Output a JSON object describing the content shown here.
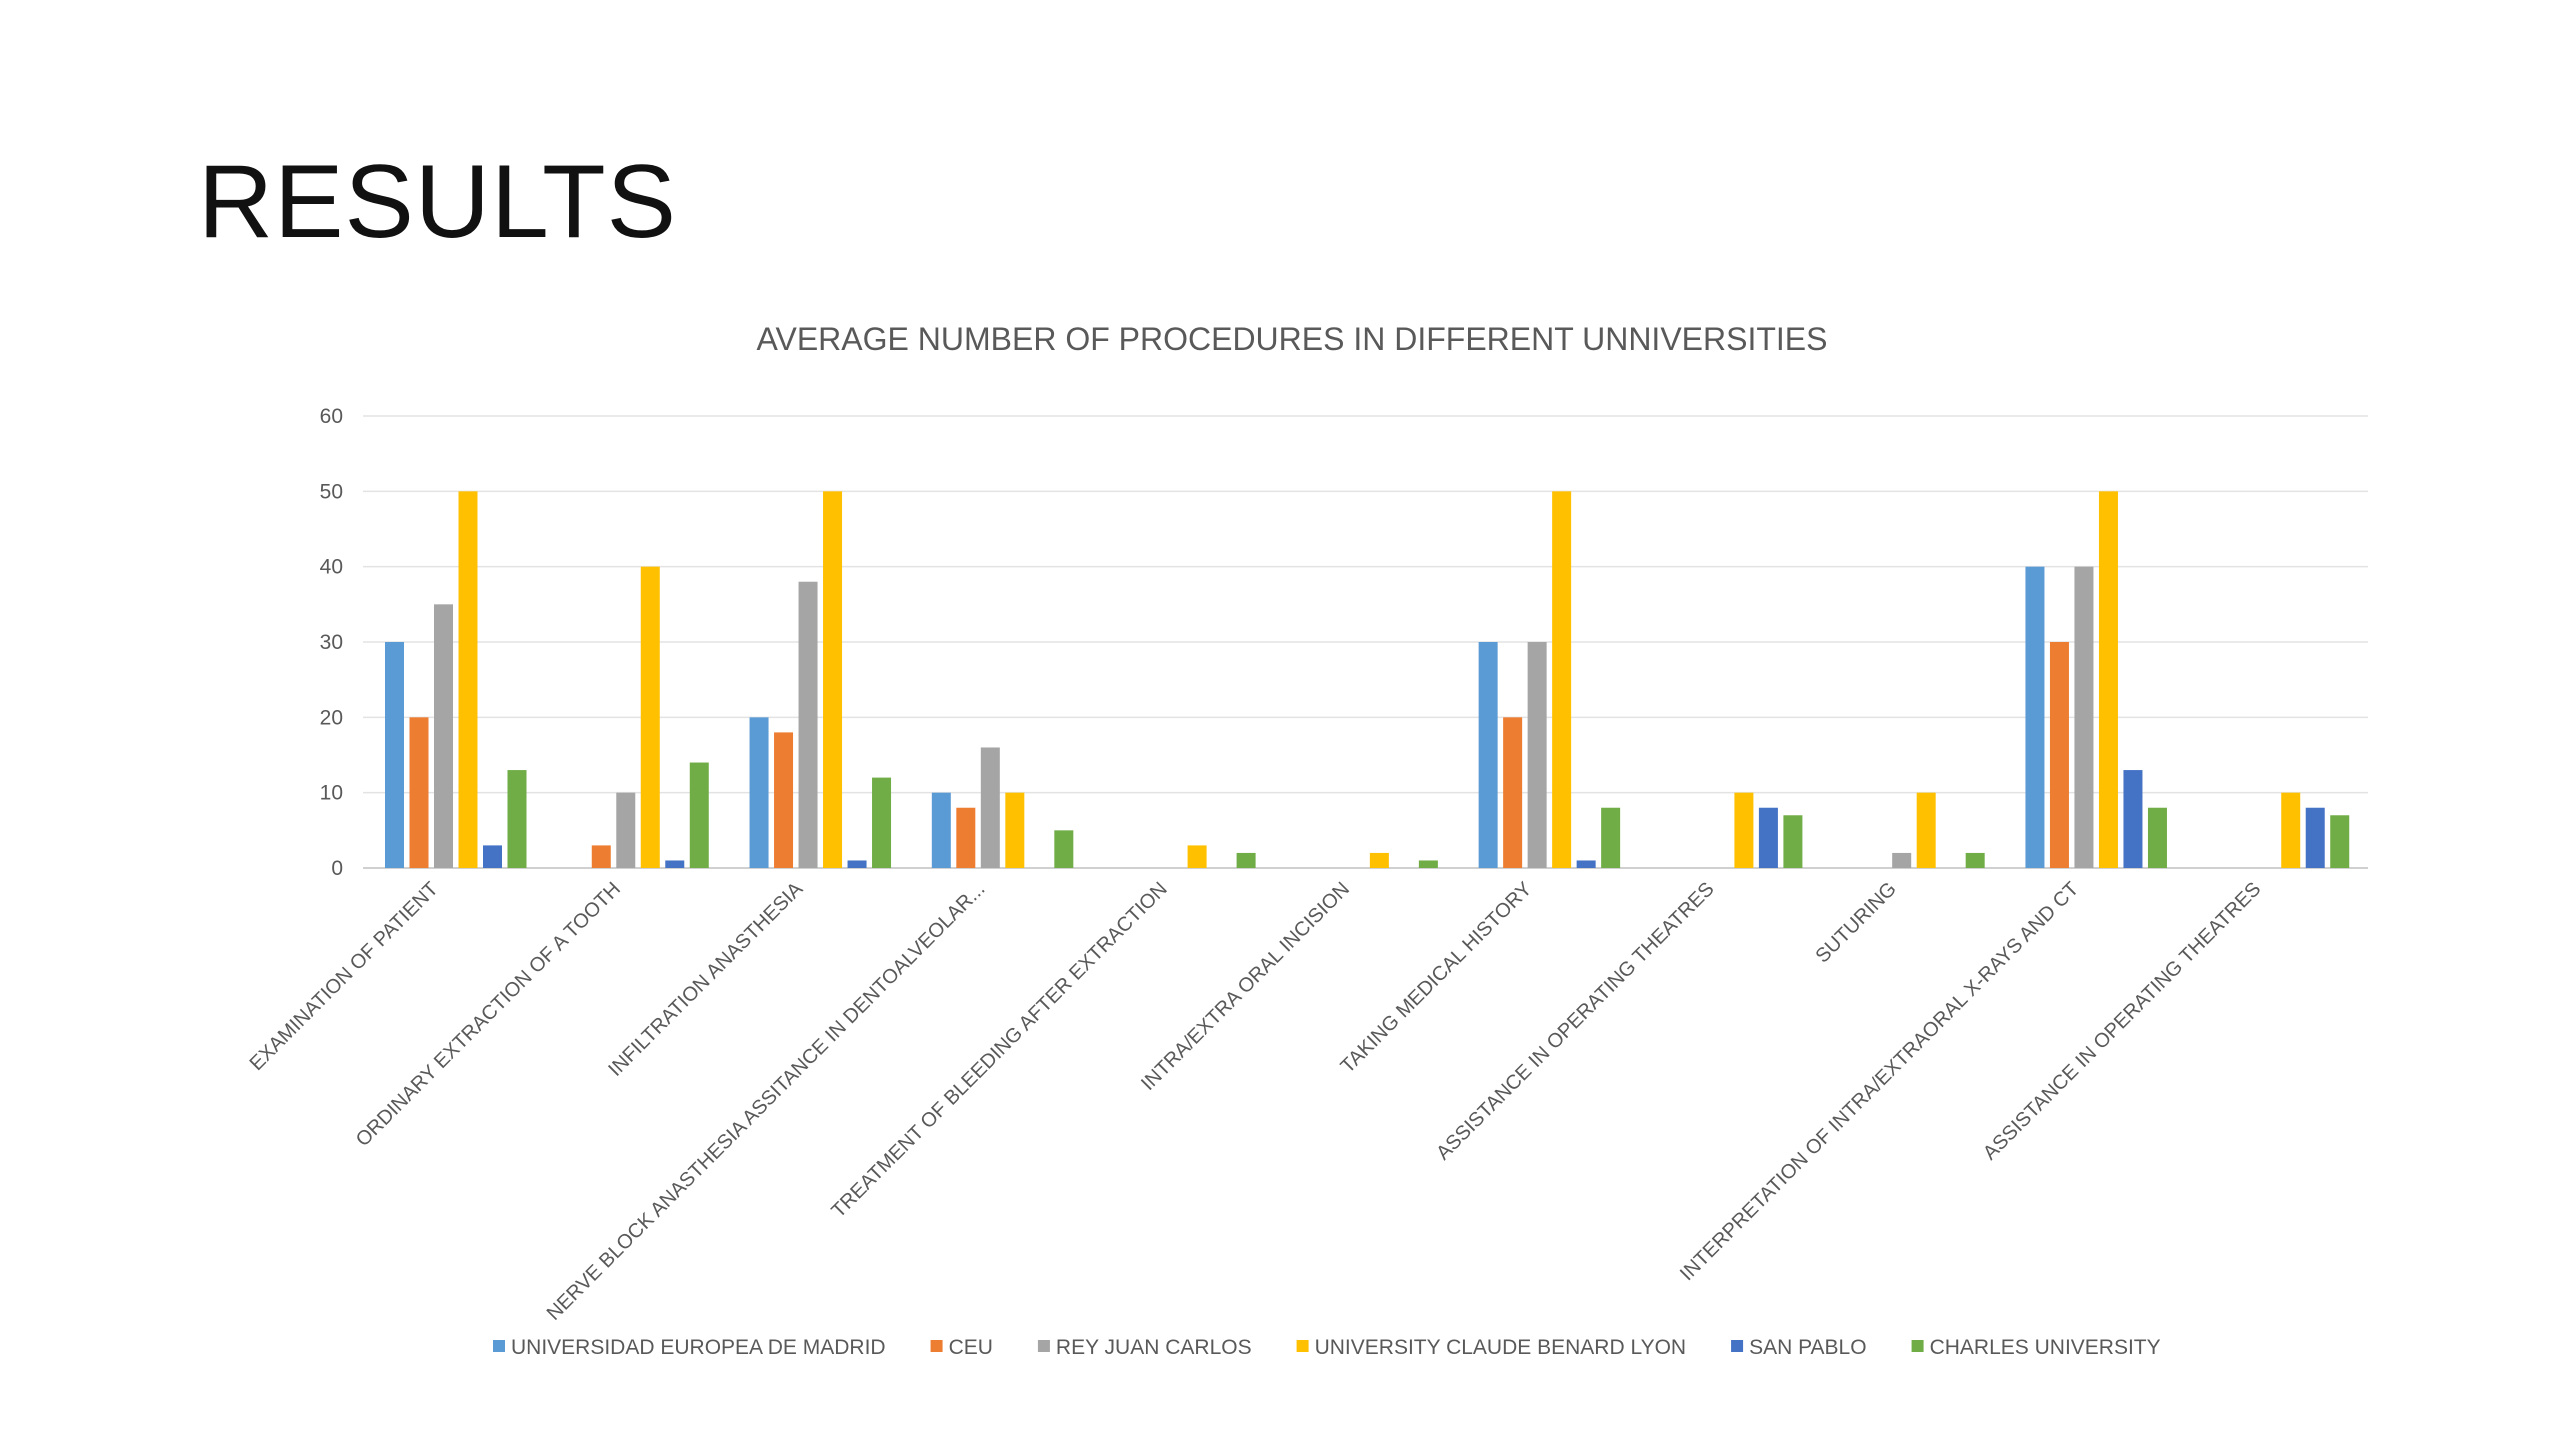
{
  "slide": {
    "title": "RESULTS"
  },
  "chart_data": {
    "type": "bar",
    "title": "AVERAGE NUMBER OF PROCEDURES IN DIFFERENT UNNIVERSITIES",
    "xlabel": "",
    "ylabel": "",
    "ylim": [
      0,
      60
    ],
    "yticks": [
      0,
      10,
      20,
      30,
      40,
      50,
      60
    ],
    "grid": true,
    "legend_position": "bottom",
    "categories": [
      "EXAMINATION OF PATIENT",
      "ORDINARY EXTRACTION OF A TOOTH",
      "INFILTRATION ANASTHESIA",
      "NERVE BLOCK ANASTHESIA ASSITANCE IN DENTOALVEOLAR...",
      "TREATMENT OF BLEEDING AFTER EXTRACTION",
      "INTRA/EXTRA ORAL INCISION",
      "TAKING MEDICAL HISTORY",
      "ASSISTANCE IN OPERATING THEATRES",
      "SUTURING",
      "INTERPRETATION OF INTRA/EXTRAORAL X-RAYS AND CT",
      "ASSISTANCE IN OPERATING THEATRES"
    ],
    "series": [
      {
        "name": "UNIVERSIDAD EUROPEA DE MADRID",
        "color": "#5B9BD5",
        "values": [
          30,
          0,
          20,
          10,
          0,
          0,
          30,
          0,
          0,
          40,
          0
        ]
      },
      {
        "name": "CEU",
        "color": "#ED7D31",
        "values": [
          20,
          3,
          18,
          8,
          0,
          0,
          20,
          0,
          0,
          30,
          0
        ]
      },
      {
        "name": "REY JUAN CARLOS",
        "color": "#A5A5A5",
        "values": [
          35,
          10,
          38,
          16,
          0,
          0,
          30,
          0,
          2,
          40,
          0
        ]
      },
      {
        "name": "UNIVERSITY CLAUDE BENARD LYON",
        "color": "#FFC000",
        "values": [
          50,
          40,
          50,
          10,
          3,
          2,
          50,
          10,
          10,
          50,
          10
        ]
      },
      {
        "name": "SAN PABLO",
        "color": "#4472C4",
        "values": [
          3,
          1,
          1,
          0,
          0,
          0,
          1,
          8,
          0,
          13,
          8
        ]
      },
      {
        "name": "CHARLES UNIVERSITY",
        "color": "#70AD47",
        "values": [
          13,
          14,
          12,
          5,
          2,
          1,
          8,
          7,
          2,
          8,
          7
        ]
      }
    ]
  }
}
